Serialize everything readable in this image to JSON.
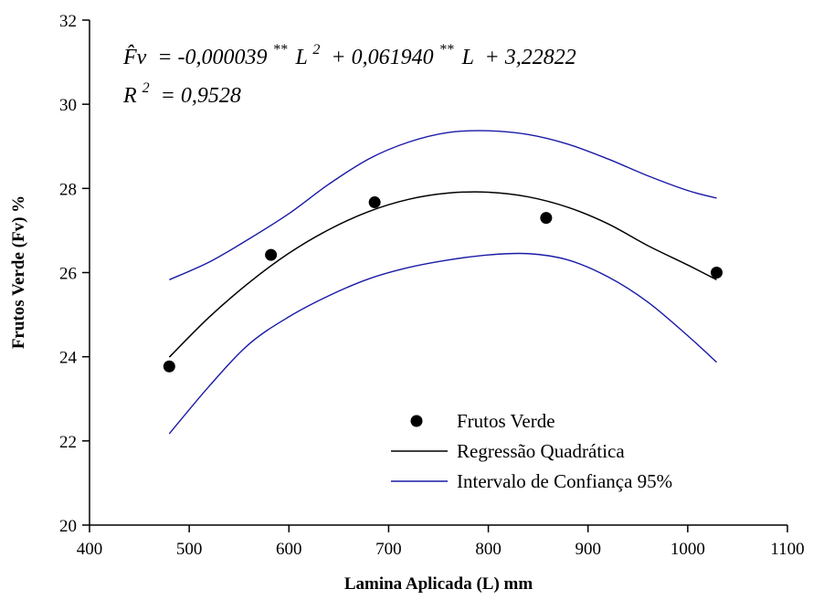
{
  "chart_data": {
    "type": "scatter",
    "xlabel": "Lamina Aplicada (L) mm",
    "ylabel": "Frutos Verde (Fv) %",
    "xlim": [
      400,
      1100
    ],
    "ylim": [
      20,
      32
    ],
    "xticks": [
      400,
      500,
      600,
      700,
      800,
      900,
      1000,
      1100
    ],
    "yticks": [
      20,
      22,
      24,
      26,
      28,
      30,
      32
    ],
    "grid": false,
    "legend_position": "bottom-right",
    "equation": {
      "lhs": "F̂v",
      "term1": "= -0,000039",
      "sup1": "**",
      "var1": "L",
      "pow1": "2",
      "term2": "+ 0,061940",
      "sup2": "**",
      "var2": "L",
      "term3": "+ 3,22822",
      "r2_lhs": "R",
      "r2_pow": "2",
      "r2_rhs": "= 0,9528"
    },
    "series": [
      {
        "name": "Frutos Verde",
        "kind": "scatter",
        "color": "#000000",
        "x": [
          480,
          582,
          686,
          858,
          1029
        ],
        "y": [
          23.77,
          26.42,
          27.67,
          27.3,
          26.0
        ]
      },
      {
        "name": "Regressão Quadrática",
        "kind": "line",
        "color": "#000000",
        "x": [
          480,
          520,
          560,
          600,
          640,
          680,
          720,
          760,
          800,
          840,
          880,
          920,
          960,
          1000,
          1029
        ],
        "y": [
          23.99,
          24.94,
          25.76,
          26.46,
          27.02,
          27.45,
          27.74,
          27.89,
          27.91,
          27.8,
          27.55,
          27.16,
          26.64,
          26.18,
          25.83
        ]
      },
      {
        "name": "Intervalo de Confiança 95%",
        "kind": "band",
        "color": "#1a1aa6",
        "x": [
          480,
          520,
          560,
          600,
          640,
          680,
          720,
          760,
          800,
          840,
          880,
          920,
          960,
          1000,
          1029
        ],
        "upper": [
          25.83,
          26.25,
          26.8,
          27.4,
          28.1,
          28.7,
          29.1,
          29.33,
          29.37,
          29.28,
          29.05,
          28.7,
          28.3,
          27.95,
          27.77
        ],
        "lower": [
          22.17,
          23.3,
          24.3,
          24.95,
          25.45,
          25.85,
          26.12,
          26.3,
          26.42,
          26.45,
          26.3,
          25.9,
          25.3,
          24.5,
          23.87
        ]
      }
    ]
  }
}
